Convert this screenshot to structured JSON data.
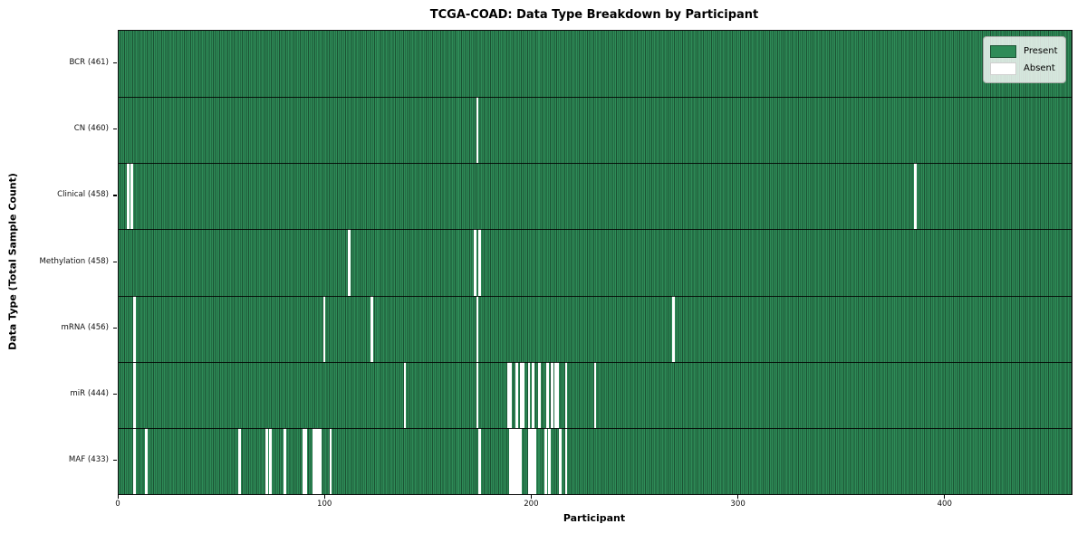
{
  "chart_data": {
    "type": "heatmap",
    "title": "TCGA-COAD: Data Type Breakdown by Participant",
    "xlabel": "Participant",
    "ylabel": "Data Type (Total Sample Count)",
    "x_ticks": [
      0,
      100,
      200,
      300,
      400
    ],
    "xlim": [
      0,
      461
    ],
    "n_participants": 461,
    "grid": "row-separators",
    "legend_position": "upper right",
    "legend": [
      {
        "label": "Present",
        "color": "#2e8b57"
      },
      {
        "label": "Absent",
        "color": "#ffffff"
      }
    ],
    "colors": {
      "present_fill": "#2e8b57",
      "bar_edge": "#1b5233",
      "absent_fill": "#ffffff",
      "row_separator": "#111111"
    },
    "rows": [
      {
        "name": "BCR",
        "label": "BCR (461)",
        "present_count": 461,
        "absent_participants": []
      },
      {
        "name": "CN",
        "label": "CN (460)",
        "present_count": 460,
        "absent_participants": [
          173
        ]
      },
      {
        "name": "Clinical",
        "label": "Clinical (458)",
        "present_count": 458,
        "absent_participants": [
          4,
          6,
          385
        ]
      },
      {
        "name": "Methylation",
        "label": "Methylation (458)",
        "present_count": 458,
        "absent_participants": [
          111,
          172,
          174
        ]
      },
      {
        "name": "mRNA",
        "label": "mRNA (456)",
        "present_count": 456,
        "absent_participants": [
          7,
          99,
          122,
          173,
          268
        ]
      },
      {
        "name": "miR",
        "label": "miR (444)",
        "present_count": 444,
        "absent_participants": [
          7,
          138,
          173,
          188,
          189,
          192,
          194,
          195,
          198,
          200,
          203,
          207,
          209,
          211,
          212,
          216,
          230
        ]
      },
      {
        "name": "MAF",
        "label": "MAF (433)",
        "present_count": 433,
        "absent_participants": [
          7,
          13,
          58,
          71,
          73,
          80,
          89,
          90,
          94,
          95,
          96,
          97,
          102,
          174,
          189,
          190,
          191,
          192,
          193,
          194,
          198,
          199,
          200,
          201,
          206,
          208,
          213,
          216
        ]
      }
    ]
  }
}
